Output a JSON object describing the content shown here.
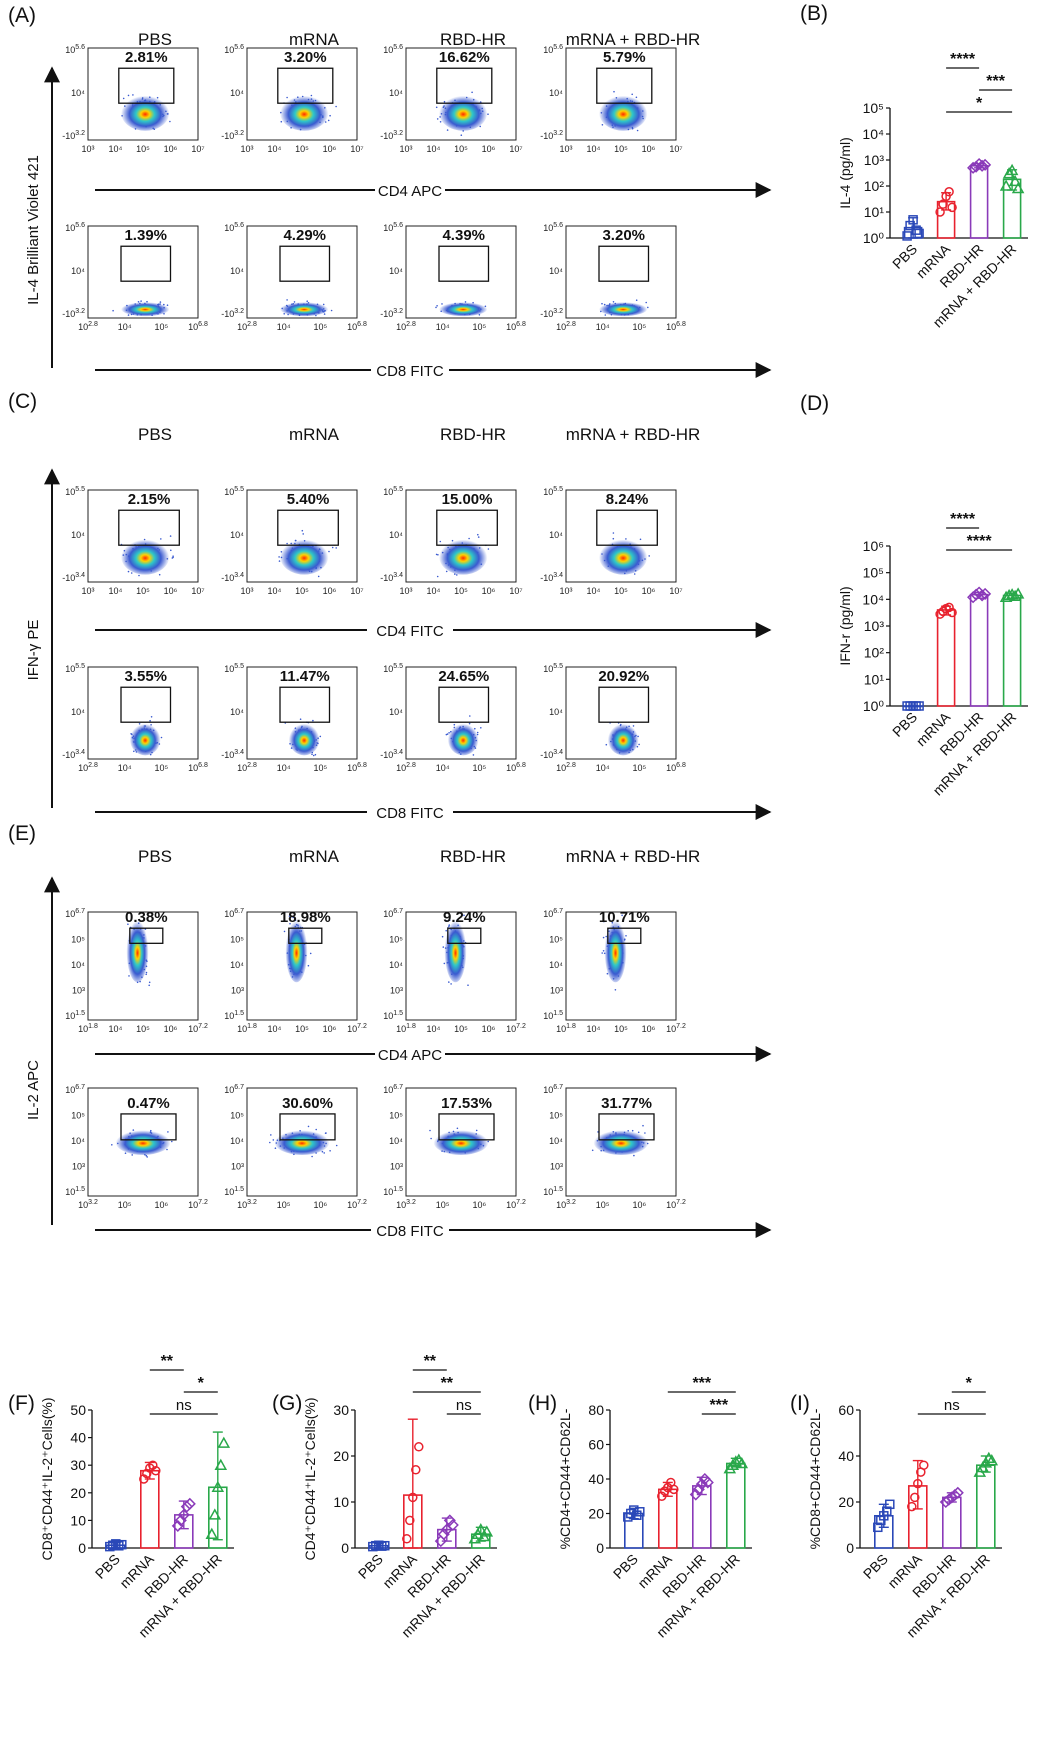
{
  "panels": {
    "A": {
      "label": "(A)",
      "columns": [
        "PBS",
        "mRNA",
        "RBD-HR",
        "mRNA + RBD-HR"
      ],
      "ylabel": "IL-4 Brilliant Violet 421",
      "rows": [
        {
          "xlabel": "CD4 APC",
          "xticks": [
            "10³",
            "10⁴",
            "10⁵",
            "10⁶",
            "10⁷"
          ],
          "yticks": [
            "10^5.6",
            "10⁴",
            "-10^3.2"
          ],
          "values": [
            "2.81%",
            "3.20%",
            "16.62%",
            "5.79%"
          ]
        },
        {
          "xlabel": "CD8 FITC",
          "xticks": [
            "10^2.8",
            "10⁴",
            "10⁵",
            "10^6.8"
          ],
          "yticks": [
            "10^5.6",
            "10⁴",
            "-10^3.2"
          ],
          "values": [
            "1.39%",
            "4.29%",
            "4.39%",
            "3.20%"
          ]
        }
      ]
    },
    "C": {
      "label": "(C)",
      "columns": [
        "PBS",
        "mRNA",
        "RBD-HR",
        "mRNA + RBD-HR"
      ],
      "ylabel": "IFN-γ PE",
      "rows": [
        {
          "xlabel": "CD4  FITC",
          "xticks": [
            "10³",
            "10⁴",
            "10⁵",
            "10⁶",
            "10⁷"
          ],
          "yticks": [
            "10^5.5",
            "10⁴",
            "-10^3.4"
          ],
          "values": [
            "2.15%",
            "5.40%",
            "15.00%",
            "8.24%"
          ]
        },
        {
          "xlabel": "CD8  FITC",
          "xticks": [
            "10^2.8",
            "10⁴",
            "10⁵",
            "10^6.8"
          ],
          "yticks": [
            "10^5.5",
            "10⁴",
            "-10^3.4"
          ],
          "values": [
            "3.55%",
            "11.47%",
            "24.65%",
            "20.92%"
          ]
        }
      ]
    },
    "E": {
      "label": "(E)",
      "columns": [
        "PBS",
        "mRNA",
        "RBD-HR",
        "mRNA + RBD-HR"
      ],
      "ylabel": "IL-2 APC",
      "rows": [
        {
          "xlabel": "CD4 APC",
          "xticks": [
            "10^1.8",
            "10⁴",
            "10⁵",
            "10⁶",
            "10^7.2"
          ],
          "yticks": [
            "10^6.7",
            "10⁵",
            "10⁴",
            "10³",
            "10^1.5"
          ],
          "values": [
            "0.38%",
            "18.98%",
            "9.24%",
            "10.71%"
          ]
        },
        {
          "xlabel": "CD8 FITC",
          "xticks": [
            "10^3.2",
            "10⁵",
            "10⁶",
            "10^7.2"
          ],
          "yticks": [
            "10^6.7",
            "10⁵",
            "10⁴",
            "10³",
            "10^1.5"
          ],
          "values": [
            "0.47%",
            "30.60%",
            "17.53%",
            "31.77%"
          ]
        }
      ]
    }
  },
  "chart_data": [
    {
      "panel": "B",
      "label": "(B)",
      "type": "bar",
      "scale": "log",
      "ylabel": "IL-4 (pg/ml)",
      "categories": [
        "PBS",
        "mRNA",
        "RBD-HR",
        "mRNA + RBD-HR"
      ],
      "yticks": [
        "10⁰",
        "10¹",
        "10²",
        "10³",
        "10⁴",
        "10⁵"
      ],
      "ylim": [
        1,
        100000
      ],
      "values": [
        2.5,
        25,
        600,
        180
      ],
      "errors": [
        [
          1,
          6
        ],
        [
          12,
          55
        ],
        [
          500,
          720
        ],
        [
          70,
          420
        ]
      ],
      "points": [
        [
          1.2,
          3,
          5,
          2,
          1.5
        ],
        [
          10,
          20,
          40,
          60,
          15
        ],
        [
          500,
          550,
          700,
          600,
          650
        ],
        [
          100,
          300,
          400,
          150,
          80
        ]
      ],
      "colors": [
        "#2a48b8",
        "#e8222e",
        "#8a3ab9",
        "#29a84a"
      ],
      "markers": [
        "square",
        "circle",
        "diamond",
        "triangle"
      ],
      "significance": [
        {
          "from": 1,
          "to": 2,
          "text": "****"
        },
        {
          "from": 2,
          "to": 3,
          "text": "***"
        },
        {
          "from": 1,
          "to": 3,
          "text": "*"
        }
      ]
    },
    {
      "panel": "D",
      "label": "(D)",
      "type": "bar",
      "scale": "log",
      "ylabel": "IFN-r (pg/ml)",
      "categories": [
        "PBS",
        "mRNA",
        "RBD-HR",
        "mRNA + RBD-HR"
      ],
      "yticks": [
        "10⁰",
        "10¹",
        "10²",
        "10³",
        "10⁴",
        "10⁵",
        "10⁶"
      ],
      "ylim": [
        1,
        1000000
      ],
      "values": [
        1,
        4000,
        15000,
        14000
      ],
      "errors": [
        [
          1,
          1
        ],
        [
          2600,
          5500
        ],
        [
          11000,
          18000
        ],
        [
          11000,
          17000
        ]
      ],
      "points": [
        [
          1,
          1,
          1,
          1,
          1
        ],
        [
          2800,
          3500,
          4500,
          5000,
          3200
        ],
        [
          12000,
          15000,
          18000,
          14000,
          16000
        ],
        [
          12000,
          14000,
          15000,
          13000,
          16000
        ]
      ],
      "colors": [
        "#2a48b8",
        "#e8222e",
        "#8a3ab9",
        "#29a84a"
      ],
      "markers": [
        "square",
        "circle",
        "diamond",
        "triangle"
      ],
      "significance": [
        {
          "from": 1,
          "to": 2,
          "text": "****"
        },
        {
          "from": 1,
          "to": 3,
          "text": "****"
        }
      ]
    },
    {
      "panel": "F",
      "label": "(F)",
      "type": "bar",
      "scale": "linear",
      "ylabel": "CD8⁺CD44⁺IL-2⁺Cells(%)",
      "categories": [
        "PBS",
        "mRNA",
        "RBD-HR",
        "mRNA + RBD-HR"
      ],
      "yticks": [
        "0",
        "10",
        "20",
        "30",
        "40",
        "50"
      ],
      "ylim": [
        0,
        50
      ],
      "values": [
        1,
        28,
        12,
        22
      ],
      "errors": [
        [
          0,
          2
        ],
        [
          25,
          31
        ],
        [
          7,
          17
        ],
        [
          3,
          42
        ]
      ],
      "points": [
        [
          0.5,
          1,
          1.5,
          0.8,
          1.2
        ],
        [
          25,
          27,
          29,
          30,
          28
        ],
        [
          8,
          10,
          12,
          15,
          16
        ],
        [
          5,
          12,
          22,
          30,
          38
        ]
      ],
      "colors": [
        "#2a48b8",
        "#e8222e",
        "#8a3ab9",
        "#29a84a"
      ],
      "markers": [
        "square",
        "circle",
        "diamond",
        "triangle"
      ],
      "significance": [
        {
          "from": 1,
          "to": 2,
          "text": "**"
        },
        {
          "from": 2,
          "to": 3,
          "text": "*"
        },
        {
          "from": 1,
          "to": 3,
          "text": "ns"
        }
      ]
    },
    {
      "panel": "G",
      "label": "(G)",
      "type": "bar",
      "scale": "linear",
      "ylabel": "CD4⁺CD44⁺IL-2⁺Cells(%)",
      "categories": [
        "PBS",
        "mRNA",
        "RBD-HR",
        "mRNA + RBD-HR"
      ],
      "yticks": [
        "0",
        "10",
        "20",
        "30"
      ],
      "ylim": [
        0,
        30
      ],
      "values": [
        0.5,
        11.5,
        4,
        3
      ],
      "errors": [
        [
          0,
          1
        ],
        [
          0,
          28
        ],
        [
          1.5,
          6.5
        ],
        [
          1.5,
          4.5
        ]
      ],
      "points": [
        [
          0.3,
          0.5,
          0.6,
          0.4,
          0.5
        ],
        [
          2,
          6,
          11,
          17,
          22
        ],
        [
          1.5,
          3,
          4,
          6,
          5
        ],
        [
          2,
          3,
          4,
          2.5,
          3.5
        ]
      ],
      "colors": [
        "#2a48b8",
        "#e8222e",
        "#8a3ab9",
        "#29a84a"
      ],
      "markers": [
        "square",
        "circle",
        "diamond",
        "triangle"
      ],
      "significance": [
        {
          "from": 1,
          "to": 2,
          "text": "**"
        },
        {
          "from": 1,
          "to": 3,
          "text": "**"
        },
        {
          "from": 2,
          "to": 3,
          "text": "ns"
        }
      ]
    },
    {
      "panel": "H",
      "label": "(H)",
      "type": "bar",
      "scale": "linear",
      "ylabel": "%CD4+CD44+CD62L-",
      "categories": [
        "PBS",
        "mRNA",
        "RBD-HR",
        "mRNA + RBD-HR"
      ],
      "yticks": [
        "0",
        "20",
        "40",
        "60",
        "80"
      ],
      "ylim": [
        0,
        80
      ],
      "values": [
        20,
        34,
        36,
        49
      ],
      "errors": [
        [
          17,
          23
        ],
        [
          30,
          38
        ],
        [
          31,
          41
        ],
        [
          47,
          52
        ]
      ],
      "points": [
        [
          18,
          20,
          22,
          19,
          21
        ],
        [
          30,
          33,
          35,
          38,
          34
        ],
        [
          31,
          34,
          37,
          40,
          38
        ],
        [
          46,
          48,
          50,
          51,
          49
        ]
      ],
      "colors": [
        "#2a48b8",
        "#e8222e",
        "#8a3ab9",
        "#29a84a"
      ],
      "markers": [
        "square",
        "circle",
        "diamond",
        "triangle"
      ],
      "significance": [
        {
          "from": 1,
          "to": 3,
          "text": "***"
        },
        {
          "from": 2,
          "to": 3,
          "text": "***"
        }
      ]
    },
    {
      "panel": "I",
      "label": "(I)",
      "type": "bar",
      "scale": "linear",
      "ylabel": "%CD8+CD44+CD62L-",
      "categories": [
        "PBS",
        "mRNA",
        "RBD-HR",
        "mRNA + RBD-HR"
      ],
      "yticks": [
        "0",
        "20",
        "40",
        "60"
      ],
      "ylim": [
        0,
        60
      ],
      "values": [
        14,
        27,
        22,
        36
      ],
      "errors": [
        [
          9,
          19
        ],
        [
          17,
          38
        ],
        [
          20,
          24
        ],
        [
          33,
          40
        ]
      ],
      "points": [
        [
          9,
          12,
          14,
          16,
          19
        ],
        [
          18,
          22,
          28,
          33,
          36
        ],
        [
          20,
          21,
          22,
          23,
          24
        ],
        [
          33,
          35,
          37,
          39,
          38
        ]
      ],
      "colors": [
        "#2a48b8",
        "#e8222e",
        "#8a3ab9",
        "#29a84a"
      ],
      "markers": [
        "square",
        "circle",
        "diamond",
        "triangle"
      ],
      "significance": [
        {
          "from": 2,
          "to": 3,
          "text": "*"
        },
        {
          "from": 1,
          "to": 3,
          "text": "ns"
        }
      ]
    }
  ]
}
